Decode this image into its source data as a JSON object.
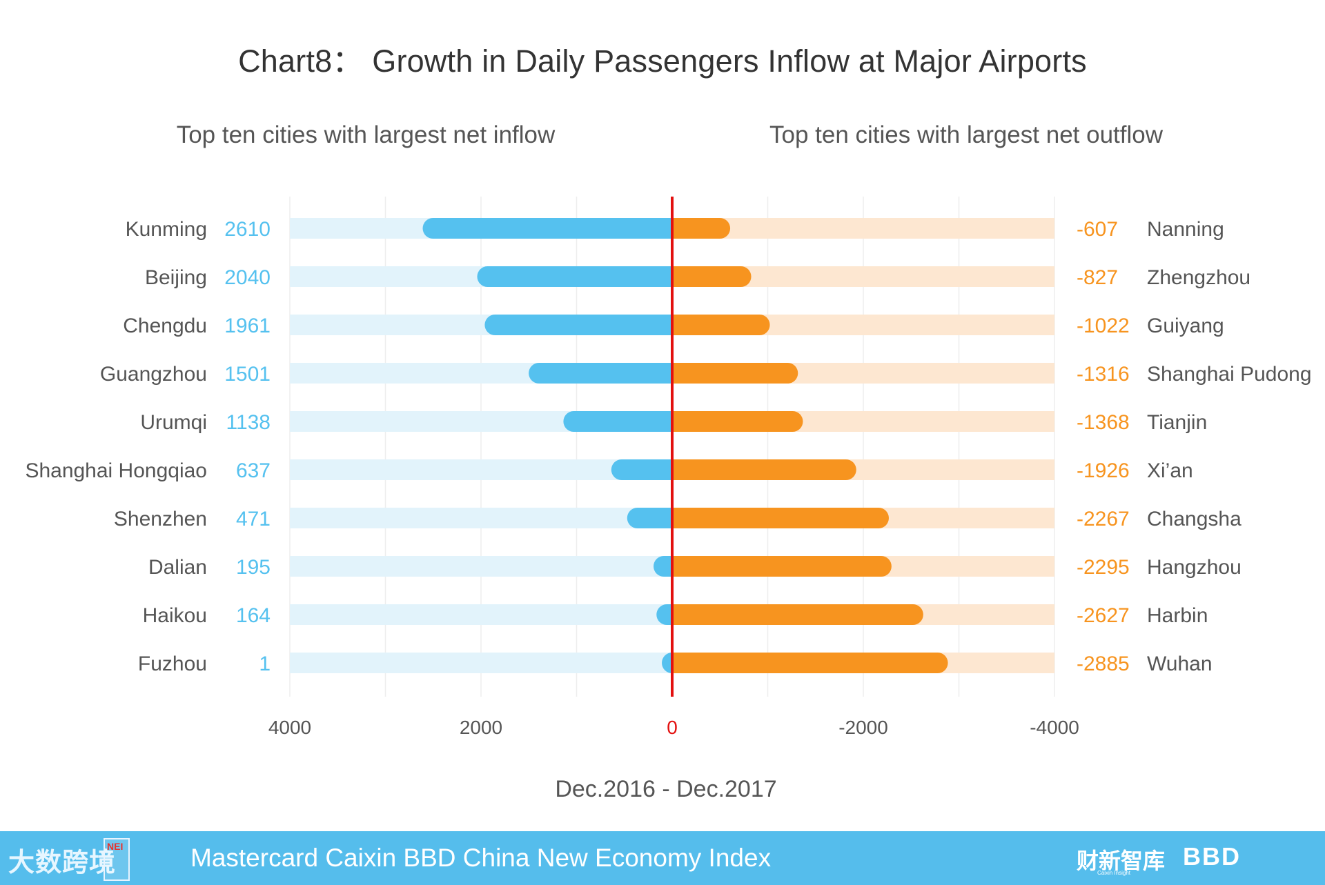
{
  "title": "Chart8： Growth in Daily Passengers Inflow at Major Airports",
  "subtitles": {
    "left": "Top ten cities with largest net inflow",
    "right": "Top ten cities with largest net outflow"
  },
  "footer": {
    "left_logo": "大数跨境",
    "nei_badge": "NEI",
    "index_name": "Mastercard Caixin BBD China New Economy Index",
    "caixin_logo": "财新智库",
    "caixin_sub": "Caixin Insight",
    "bbd_logo": "BBD"
  },
  "colors": {
    "inflow": "#55c1ef",
    "inflow_track": "#e2f3fb",
    "outflow": "#f7941f",
    "outflow_track": "#fde7d1",
    "zero_line": "#e3100f",
    "city_label": "#555555",
    "axis_label": "#555555"
  },
  "chart_data": {
    "type": "bar",
    "orientation": "horizontal-diverging",
    "xlabel": "Dec.2016 - Dec.2017",
    "xlim": [
      4000,
      -4000
    ],
    "xticks": [
      "4000",
      "2000",
      "0",
      "-2000",
      "-4000"
    ],
    "grid": true,
    "series": [
      {
        "name": "Top ten cities with largest net inflow",
        "side": "left",
        "categories": [
          "Kunming",
          "Beijing",
          "Chengdu",
          "Guangzhou",
          "Urumqi",
          "Shanghai Hongqiao",
          "Shenzhen",
          "Dalian",
          "Haikou",
          "Fuzhou"
        ],
        "values": [
          2610,
          2040,
          1961,
          1501,
          1138,
          637,
          471,
          195,
          164,
          1
        ]
      },
      {
        "name": "Top ten cities with largest net outflow",
        "side": "right",
        "categories": [
          "Nanning",
          "Zhengzhou",
          "Guiyang",
          "Shanghai Pudong",
          "Tianjin",
          "Xi’an",
          "Changsha",
          "Hangzhou",
          "Harbin",
          "Wuhan"
        ],
        "values": [
          -607,
          -827,
          -1022,
          -1316,
          -1368,
          -1926,
          -2267,
          -2295,
          -2627,
          -2885
        ]
      }
    ]
  }
}
